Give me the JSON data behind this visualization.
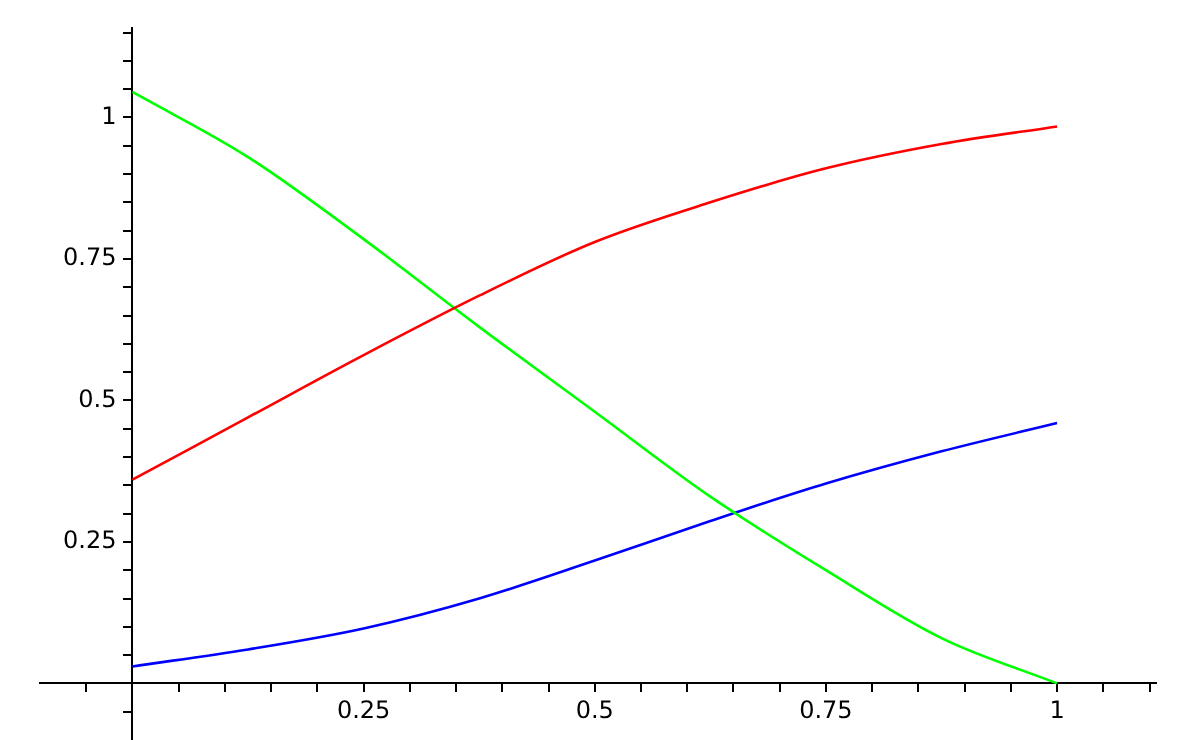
{
  "chart_data": {
    "type": "line",
    "x": [
      0,
      0.125,
      0.25,
      0.375,
      0.5,
      0.625,
      0.75,
      0.875,
      1
    ],
    "series": [
      {
        "color": "#ff0000",
        "values": [
          0.36,
          0.47,
          0.58,
          0.685,
          0.78,
          0.85,
          0.91,
          0.953,
          0.984
        ]
      },
      {
        "color": "#00ff00",
        "values": [
          1.045,
          0.93,
          0.785,
          0.63,
          0.48,
          0.33,
          0.2,
          0.08,
          0
        ]
      },
      {
        "color": "#0000ff",
        "values": [
          0.03,
          0.06,
          0.097,
          0.15,
          0.217,
          0.287,
          0.353,
          0.41,
          0.46
        ]
      }
    ],
    "xlim": [
      -0.1,
      1.107
    ],
    "ylim": [
      -0.1,
      1.158
    ],
    "xticks": [
      {
        "value": -0.05,
        "label": null
      },
      0.25,
      0.5,
      0.75,
      1,
      {
        "value": 0.05,
        "label": null
      },
      {
        "value": 0.1,
        "label": null
      },
      {
        "value": 0.15,
        "label": null
      },
      {
        "value": 0.2,
        "label": null
      },
      {
        "value": 0.3,
        "label": null
      },
      {
        "value": 0.35,
        "label": null
      },
      {
        "value": 0.4,
        "label": null
      },
      {
        "value": 0.45,
        "label": null
      },
      {
        "value": 0.55,
        "label": null
      },
      {
        "value": 0.6,
        "label": null
      },
      {
        "value": 0.65,
        "label": null
      },
      {
        "value": 0.7,
        "label": null
      },
      {
        "value": 0.8,
        "label": null
      },
      {
        "value": 0.85,
        "label": null
      },
      {
        "value": 0.9,
        "label": null
      },
      {
        "value": 0.95,
        "label": null
      },
      {
        "value": 1.05,
        "label": null
      },
      {
        "value": 1.1,
        "label": null
      }
    ],
    "yticks": [
      {
        "value": -0.05,
        "label": null
      },
      0.25,
      0.5,
      0.75,
      1,
      {
        "value": 0.05,
        "label": null
      },
      {
        "value": 0.1,
        "label": null
      },
      {
        "value": 0.15,
        "label": null
      },
      {
        "value": 0.2,
        "label": null
      },
      {
        "value": 0.3,
        "label": null
      },
      {
        "value": 0.35,
        "label": null
      },
      {
        "value": 0.4,
        "label": null
      },
      {
        "value": 0.45,
        "label": null
      },
      {
        "value": 0.55,
        "label": null
      },
      {
        "value": 0.6,
        "label": null
      },
      {
        "value": 0.65,
        "label": null
      },
      {
        "value": 0.7,
        "label": null
      },
      {
        "value": 0.8,
        "label": null
      },
      {
        "value": 0.85,
        "label": null
      },
      {
        "value": 0.9,
        "label": null
      },
      {
        "value": 0.95,
        "label": null
      },
      {
        "value": 1.05,
        "label": null
      },
      {
        "value": 1.1,
        "label": null
      },
      {
        "value": 1.15,
        "label": null
      }
    ],
    "grid": false,
    "legend": false,
    "marker": "none",
    "line_style": "solid"
  }
}
